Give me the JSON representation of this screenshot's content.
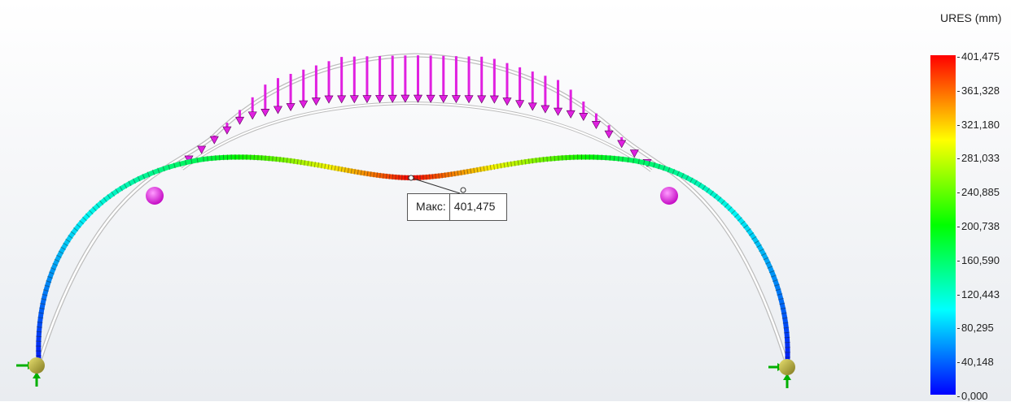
{
  "legend": {
    "title": "URES (mm)",
    "values": [
      "401,475",
      "361,328",
      "321,180",
      "281,033",
      "240,885",
      "200,738",
      "160,590",
      "120,443",
      "80,295",
      "40,148",
      "0,000"
    ]
  },
  "max_probe": {
    "label": "Макс:",
    "value": "401,475"
  },
  "colors": {
    "load_arrow": "#e020e0",
    "support_ball": "#b8b030",
    "fixture": "#00c000",
    "undeformed_beam": "#d8d8d8"
  },
  "icons": [
    "fixture-icon",
    "load-arrow-icon",
    "hinge-sphere-icon"
  ]
}
